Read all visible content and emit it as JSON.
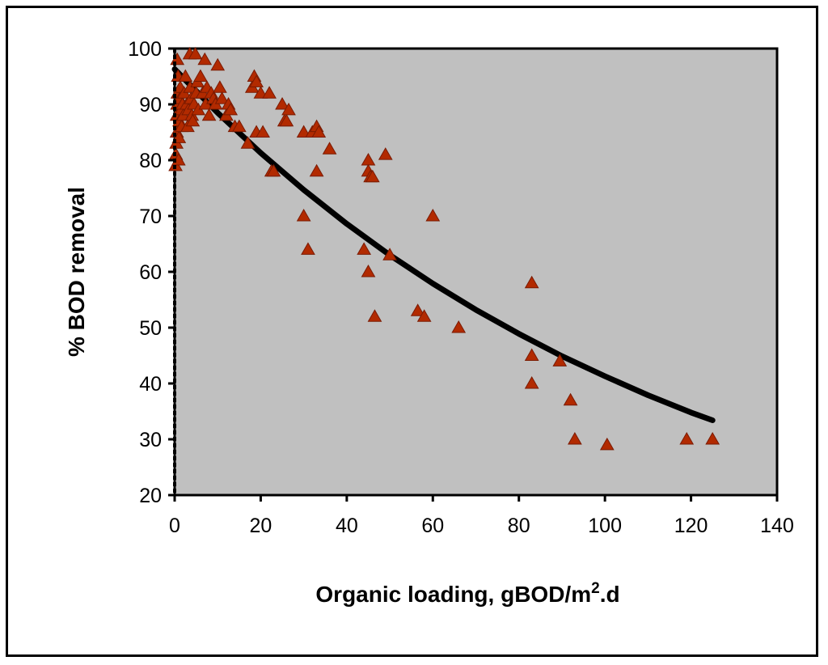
{
  "chart_data": {
    "type": "scatter",
    "title": "",
    "xlabel": "Organic loading, gBOD/m",
    "xlabel_superscript": "2",
    "xlabel_suffix": ".d",
    "ylabel": "% BOD removal",
    "xlim": [
      0,
      140
    ],
    "ylim": [
      20,
      100
    ],
    "xticks": [
      0,
      20,
      40,
      60,
      80,
      100,
      120,
      140
    ],
    "yticks": [
      20,
      30,
      40,
      50,
      60,
      70,
      80,
      90,
      100
    ],
    "grid": false,
    "legend": "none",
    "colors": {
      "plot_background": "#c0c0c0",
      "marker_fill": "#b22a00",
      "marker_edge": "#7a1a00",
      "fit_line": "#000000"
    },
    "series": [
      {
        "name": "observed",
        "kind": "scatter",
        "marker": "triangle",
        "points": [
          [
            0.2,
            79
          ],
          [
            0.3,
            81
          ],
          [
            0.4,
            83
          ],
          [
            0.5,
            85
          ],
          [
            0.5,
            88
          ],
          [
            0.6,
            90
          ],
          [
            0.7,
            92
          ],
          [
            0.8,
            95
          ],
          [
            0.6,
            98
          ],
          [
            0.9,
            80
          ],
          [
            1.0,
            84
          ],
          [
            1.1,
            87
          ],
          [
            1.2,
            91
          ],
          [
            1.3,
            93
          ],
          [
            1.5,
            89
          ],
          [
            1.6,
            86
          ],
          [
            1.8,
            90
          ],
          [
            2.0,
            88
          ],
          [
            2.2,
            92
          ],
          [
            2.5,
            95
          ],
          [
            2.8,
            90
          ],
          [
            3.0,
            86
          ],
          [
            3.2,
            89
          ],
          [
            3.5,
            99
          ],
          [
            3.6,
            93
          ],
          [
            3.8,
            91
          ],
          [
            4.0,
            88
          ],
          [
            4.2,
            87
          ],
          [
            4.5,
            90
          ],
          [
            4.8,
            99
          ],
          [
            5.0,
            92
          ],
          [
            5.3,
            94
          ],
          [
            5.5,
            89
          ],
          [
            6.0,
            95
          ],
          [
            6.5,
            92
          ],
          [
            7.0,
            98
          ],
          [
            7.2,
            90
          ],
          [
            7.5,
            93
          ],
          [
            8.0,
            88
          ],
          [
            8.5,
            92
          ],
          [
            9.0,
            91
          ],
          [
            9.5,
            90
          ],
          [
            10.0,
            97
          ],
          [
            10.5,
            93
          ],
          [
            11.0,
            91
          ],
          [
            12.0,
            88
          ],
          [
            12.5,
            90
          ],
          [
            13.0,
            89
          ],
          [
            14.0,
            86
          ],
          [
            15.0,
            86
          ],
          [
            17.0,
            83
          ],
          [
            18.0,
            93
          ],
          [
            18.5,
            95
          ],
          [
            19.0,
            94
          ],
          [
            19.0,
            85
          ],
          [
            20.0,
            92
          ],
          [
            20.5,
            85
          ],
          [
            22.0,
            92
          ],
          [
            22.5,
            78
          ],
          [
            23.0,
            78
          ],
          [
            25.0,
            90
          ],
          [
            25.5,
            87
          ],
          [
            26.0,
            87
          ],
          [
            26.5,
            89
          ],
          [
            30.0,
            85
          ],
          [
            30.0,
            70
          ],
          [
            31.0,
            64
          ],
          [
            32.0,
            85
          ],
          [
            33.0,
            86
          ],
          [
            33.0,
            78
          ],
          [
            33.5,
            85
          ],
          [
            36.0,
            82
          ],
          [
            44.0,
            64
          ],
          [
            45.0,
            80
          ],
          [
            45.0,
            60
          ],
          [
            45.0,
            78
          ],
          [
            45.5,
            77
          ],
          [
            46.0,
            77
          ],
          [
            46.5,
            52
          ],
          [
            49.0,
            81
          ],
          [
            50.0,
            63
          ],
          [
            56.5,
            53
          ],
          [
            58.0,
            52
          ],
          [
            60.0,
            70
          ],
          [
            66.0,
            50
          ],
          [
            83.0,
            58
          ],
          [
            83.0,
            45
          ],
          [
            83.0,
            40
          ],
          [
            89.5,
            44
          ],
          [
            92.0,
            37
          ],
          [
            93.0,
            30
          ],
          [
            100.5,
            29
          ],
          [
            119.0,
            30
          ],
          [
            125.0,
            30
          ]
        ]
      },
      {
        "name": "fitted curve",
        "kind": "line",
        "x": [
          0,
          10,
          20,
          30,
          40,
          50,
          60,
          70,
          80,
          90,
          100,
          110,
          120,
          125
        ],
        "y": [
          96.3,
          88.5,
          81.3,
          74.7,
          68.6,
          63.0,
          57.9,
          53.2,
          48.9,
          44.9,
          41.3,
          37.9,
          34.8,
          33.4
        ]
      }
    ]
  }
}
